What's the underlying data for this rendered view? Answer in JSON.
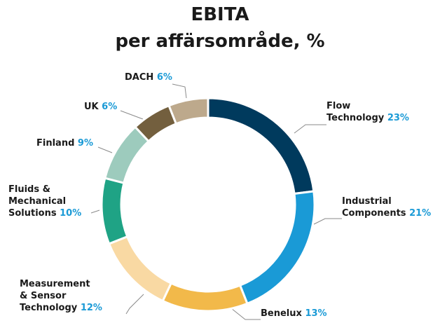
{
  "chart_data": {
    "type": "donut",
    "title": "EBITA",
    "subtitle": "per affärsområde, %",
    "categories": [
      "Flow\nTechnology",
      "Industrial\nComponents",
      "Benelux",
      "Measurement\n& Sensor\nTechnology",
      "Fluids &\nMechanical\nSolutions",
      "Finland",
      "UK",
      "DACH"
    ],
    "values": [
      23,
      21,
      13,
      12,
      10,
      9,
      6,
      6
    ],
    "value_labels": [
      "23%",
      "21%",
      "13%",
      "12%",
      "10%",
      "9%",
      "6%",
      "6%"
    ],
    "colors": [
      "#003a5d",
      "#1a9ad6",
      "#f2b94a",
      "#f9d9a3",
      "#1fa385",
      "#9dcbbd",
      "#735f3e",
      "#bda98c"
    ]
  }
}
